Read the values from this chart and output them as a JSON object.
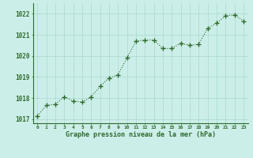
{
  "x": [
    0,
    1,
    2,
    3,
    4,
    5,
    6,
    7,
    8,
    9,
    10,
    11,
    12,
    13,
    14,
    15,
    16,
    17,
    18,
    19,
    20,
    21,
    22,
    23
  ],
  "y": [
    1017.15,
    1017.65,
    1017.7,
    1018.05,
    1017.85,
    1017.8,
    1018.05,
    1018.55,
    1018.95,
    1019.1,
    1019.9,
    1020.7,
    1020.75,
    1020.75,
    1020.35,
    1020.35,
    1020.6,
    1020.5,
    1020.55,
    1021.3,
    1021.55,
    1021.9,
    1021.95,
    1021.65
  ],
  "line_color": "#2d6a2d",
  "bg_color": "#cceee8",
  "grid_color": "#a8d8d0",
  "xlabel": "Graphe pression niveau de la mer (hPa)",
  "xlabel_color": "#2d6a2d",
  "tick_color": "#2d6a2d",
  "axis_color": "#2d6a2d",
  "ylim": [
    1016.8,
    1022.5
  ],
  "yticks": [
    1017,
    1018,
    1019,
    1020,
    1021,
    1022
  ],
  "xlim": [
    -0.5,
    23.5
  ],
  "xticks": [
    0,
    1,
    2,
    3,
    4,
    5,
    6,
    7,
    8,
    9,
    10,
    11,
    12,
    13,
    14,
    15,
    16,
    17,
    18,
    19,
    20,
    21,
    22,
    23
  ],
  "xtick_labels": [
    "0",
    "1",
    "2",
    "3",
    "4",
    "5",
    "6",
    "7",
    "8",
    "9",
    "10",
    "11",
    "12",
    "13",
    "14",
    "15",
    "16",
    "17",
    "18",
    "19",
    "20",
    "21",
    "22",
    "23"
  ]
}
